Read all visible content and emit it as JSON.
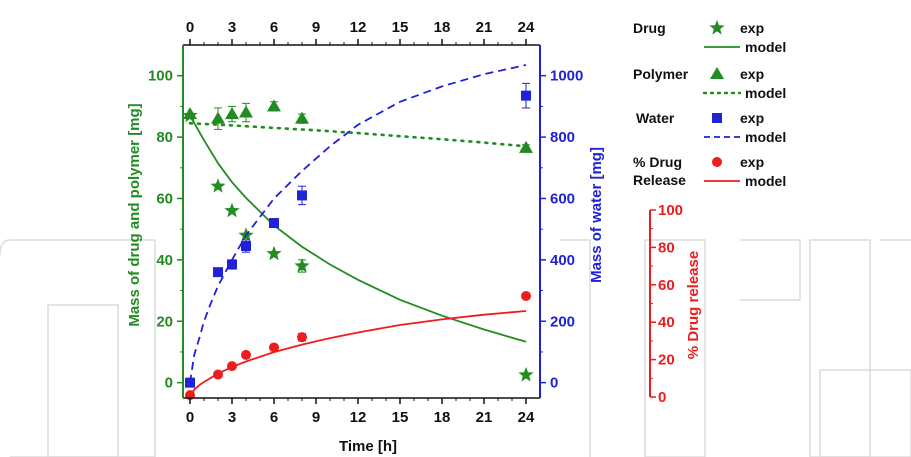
{
  "chart_data": {
    "type": "scatter",
    "xlabel": "Time [h]",
    "x_ticks": [
      0,
      3,
      6,
      9,
      12,
      15,
      18,
      21,
      24
    ],
    "x_range": [
      -0.5,
      25
    ],
    "y_left": {
      "label": "Mass of drug and polymer [mg]",
      "range": [
        -5,
        110
      ],
      "ticks": [
        0,
        20,
        40,
        60,
        80,
        100
      ],
      "color": "#228b22"
    },
    "y_right_water": {
      "label": "Mass of water [mg]",
      "range": [
        -50,
        1100
      ],
      "ticks": [
        0,
        200,
        400,
        600,
        800,
        1000
      ],
      "color": "#1f22d6"
    },
    "y_right_release": {
      "label": "% Drug release",
      "range": [
        0,
        100
      ],
      "ticks": [
        0,
        20,
        40,
        60,
        80,
        100
      ],
      "color": "#ee1c1c"
    },
    "series": [
      {
        "name": "Drug",
        "axis": "left",
        "marker": "star",
        "color": "#228b22",
        "x": [
          0,
          2,
          3,
          4,
          6,
          8,
          24
        ],
        "y": [
          87,
          64,
          56,
          48,
          42,
          38,
          2.5
        ],
        "err": [
          0,
          0,
          0,
          0,
          0,
          2,
          0
        ],
        "model": {
          "style": "solid",
          "x": [
            0,
            0.5,
            1,
            2,
            3,
            4,
            6,
            8,
            10,
            12,
            15,
            18,
            21,
            24
          ],
          "y": [
            87,
            83,
            79,
            71.5,
            65.3,
            60.2,
            51.2,
            44.3,
            38.5,
            33.5,
            27,
            21.8,
            17.3,
            13.3
          ]
        }
      },
      {
        "name": "Polymer",
        "axis": "left",
        "marker": "triangle",
        "color": "#228b22",
        "x": [
          0,
          2,
          3,
          4,
          6,
          8,
          24
        ],
        "y": [
          87.5,
          86,
          87.5,
          88,
          90,
          86,
          76.5
        ],
        "err": [
          0,
          3.5,
          2.5,
          3,
          1.5,
          1.5,
          1
        ],
        "model": {
          "style": "dotted",
          "x": [
            0,
            3,
            6,
            9,
            12,
            15,
            18,
            21,
            24
          ],
          "y": [
            84.5,
            83.8,
            83,
            82.2,
            81.3,
            80.3,
            79.3,
            78.2,
            77
          ]
        }
      },
      {
        "name": "Water",
        "axis": "right_water",
        "marker": "square",
        "color": "#1f22d6",
        "x": [
          0,
          2,
          3,
          4,
          6,
          8,
          24
        ],
        "y": [
          0,
          360,
          385,
          445,
          520,
          610,
          935
        ],
        "err": [
          0,
          0,
          15,
          20,
          0,
          30,
          40
        ],
        "model": {
          "style": "dashed",
          "x": [
            0,
            0.3,
            0.7,
            1,
            1.5,
            2,
            3,
            4,
            6,
            8,
            10,
            12,
            15,
            18,
            21,
            24
          ],
          "y": [
            0,
            90,
            150,
            200,
            260,
            315,
            400,
            480,
            600,
            690,
            770,
            840,
            915,
            965,
            1005,
            1035
          ]
        }
      },
      {
        "name": "% Drug Release",
        "axis": "right_release",
        "marker": "circle",
        "color": "#ee1c1c",
        "x": [
          0,
          2,
          3,
          4,
          6,
          8,
          24
        ],
        "y": [
          1,
          12,
          16.5,
          22.5,
          26.5,
          32,
          54
        ],
        "err": [
          0,
          0,
          0,
          0,
          0,
          2,
          0
        ],
        "model": {
          "style": "solid",
          "x": [
            0,
            0.3,
            0.7,
            1,
            2,
            3,
            4,
            6,
            8,
            10,
            12,
            15,
            18,
            21,
            24
          ],
          "y": [
            0,
            4,
            6.5,
            8,
            12.5,
            16,
            19,
            24,
            28,
            31.5,
            34.5,
            38.5,
            41.5,
            44,
            46
          ]
        }
      }
    ],
    "legend": [
      {
        "group": "Drug",
        "entries": [
          {
            "marker": "star",
            "label": "exp"
          },
          {
            "line": "solid",
            "label": "model"
          }
        ]
      },
      {
        "group": "Polymer",
        "entries": [
          {
            "marker": "triangle",
            "label": "exp"
          },
          {
            "line": "dotted",
            "label": "model"
          }
        ]
      },
      {
        "group": "Water",
        "entries": [
          {
            "marker": "square",
            "label": "exp"
          },
          {
            "line": "dashed",
            "label": "model"
          }
        ]
      },
      {
        "group": "% Drug Release",
        "entries": [
          {
            "marker": "circle",
            "label": "exp"
          },
          {
            "line": "solid",
            "label": "model"
          }
        ]
      }
    ]
  }
}
